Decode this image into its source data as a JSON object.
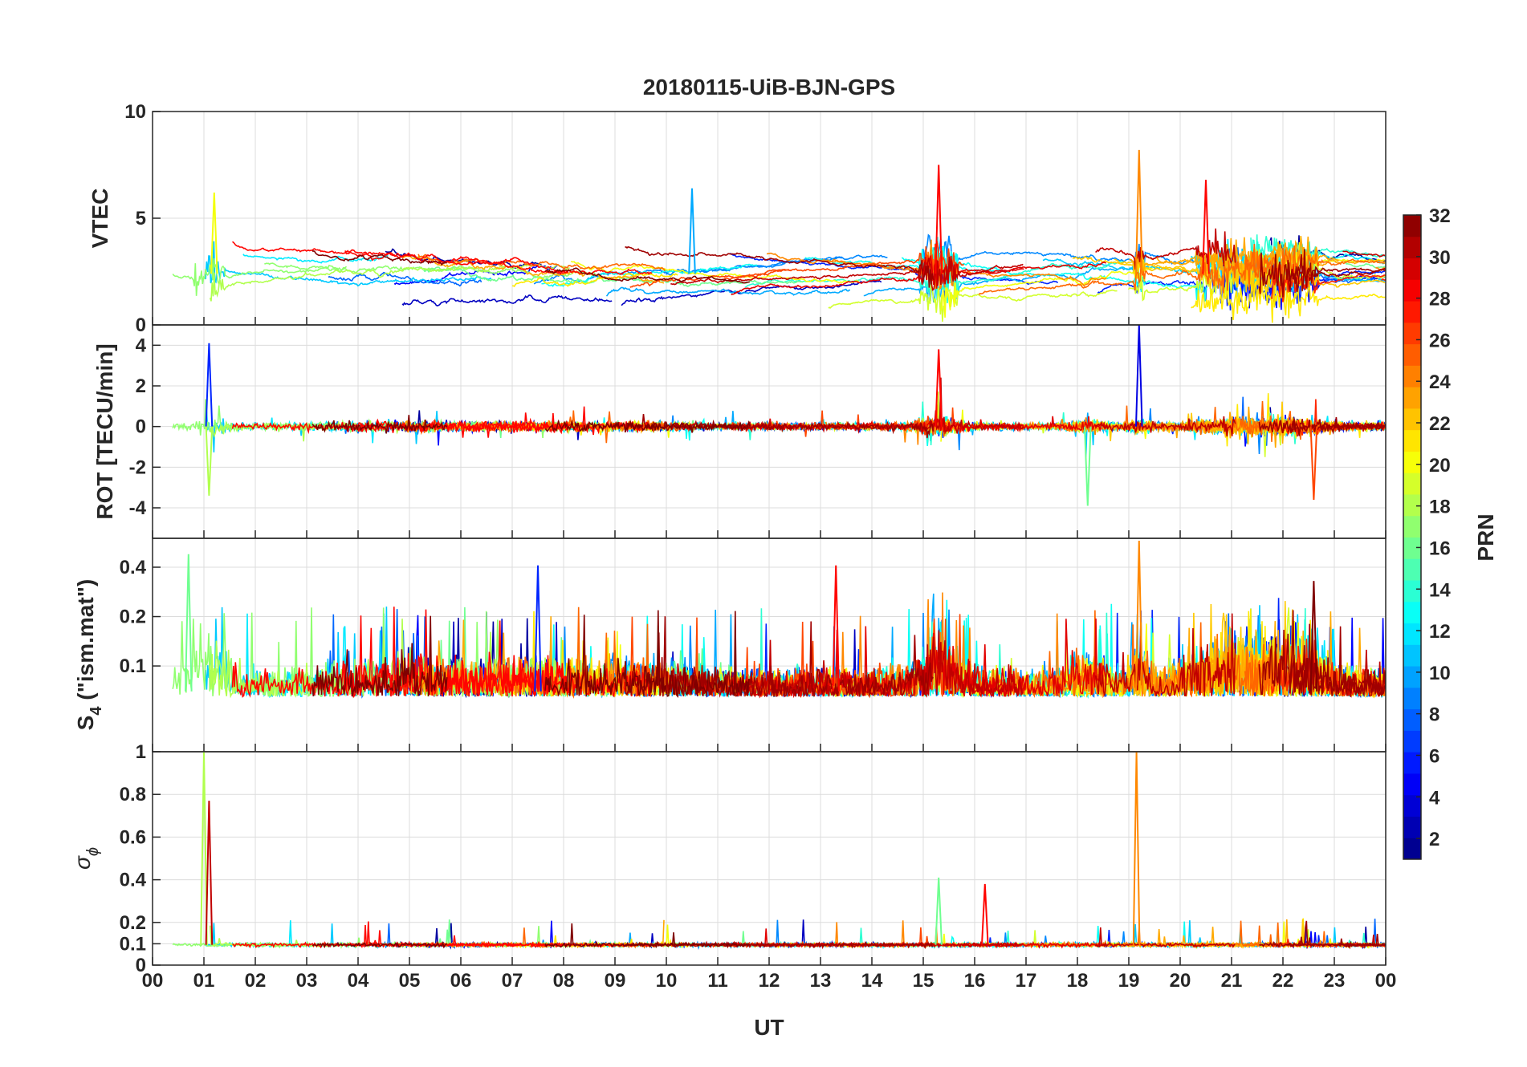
{
  "chart_data": {
    "type": "line",
    "title": "20180115-UiB-BJN-GPS",
    "xlabel": "UT",
    "x_tick_labels": [
      "00",
      "01",
      "02",
      "03",
      "04",
      "05",
      "06",
      "07",
      "08",
      "09",
      "10",
      "11",
      "12",
      "13",
      "14",
      "15",
      "16",
      "17",
      "18",
      "19",
      "20",
      "21",
      "22",
      "23",
      "00"
    ],
    "xlim": [
      0,
      24
    ],
    "grid": true,
    "panels": [
      {
        "id": "vtec",
        "ylabel": "VTEC",
        "ylim": [
          0,
          10
        ],
        "y_ticks": [
          0,
          5,
          10
        ],
        "y_tick_labels": [
          "0",
          "5",
          "10"
        ],
        "series_description_values": {
          "typical_range": [
            1,
            4
          ],
          "peaks": [
            {
              "x": 10.5,
              "y": 6.4,
              "prn": 10
            },
            {
              "x": 15.3,
              "y": 7.5,
              "prn": 28
            },
            {
              "x": 19.2,
              "y": 8.2,
              "prn": 24
            },
            {
              "x": 1.2,
              "y": 6.2,
              "prn": 20
            },
            {
              "x": 20.5,
              "y": 6.8,
              "prn": 28
            }
          ]
        }
      },
      {
        "id": "rot",
        "ylabel": "ROT [TECU/min]",
        "ylim": [
          -5.5,
          5
        ],
        "y_ticks": [
          -4,
          -2,
          0,
          2,
          4
        ],
        "y_tick_labels": [
          "-4",
          "-2",
          "0",
          "2",
          "4"
        ],
        "series_description_values": {
          "typical_range": [
            -0.5,
            0.5
          ],
          "peaks": [
            {
              "x": 1.1,
              "y": 4.1,
              "prn": 6
            },
            {
              "x": 1.1,
              "y": -3.4,
              "prn": 18
            },
            {
              "x": 15.3,
              "y": 3.8,
              "prn": 28
            },
            {
              "x": 19.2,
              "y": 5.0,
              "prn": 4
            },
            {
              "x": 18.2,
              "y": -3.9,
              "prn": 16
            },
            {
              "x": 22.6,
              "y": -3.6,
              "prn": 26
            }
          ]
        }
      },
      {
        "id": "s4",
        "ylabel_main": "S",
        "ylabel_sub": "4",
        "ylabel_rest": " (\"ism.mat\")",
        "ylim": [
          0.03,
          0.6
        ],
        "y_ticks": [
          0.1,
          0.2,
          0.4
        ],
        "y_tick_labels": [
          "0.1",
          "0.2",
          "0.4"
        ],
        "y_scale": "log",
        "series_description_values": {
          "typical_range": [
            0.05,
            0.15
          ],
          "peaks": [
            {
              "x": 0.7,
              "y": 0.48,
              "prn": 16
            },
            {
              "x": 7.5,
              "y": 0.41,
              "prn": 6
            },
            {
              "x": 13.3,
              "y": 0.41,
              "prn": 28
            },
            {
              "x": 19.2,
              "y": 0.58,
              "prn": 24
            },
            {
              "x": 22.6,
              "y": 0.33,
              "prn": 32
            }
          ]
        }
      },
      {
        "id": "sigma_phi",
        "ylabel_main": "σ",
        "ylabel_sub": "ϕ",
        "ylim": [
          0,
          1
        ],
        "y_ticks": [
          0,
          0.1,
          0.2,
          0.4,
          0.6,
          0.8,
          1
        ],
        "y_tick_labels": [
          "0",
          "0.1",
          "0.2",
          "0.4",
          "0.6",
          "0.8",
          "1"
        ],
        "y_tick_positions_frac": [
          0,
          0.1,
          0.2,
          0.4,
          0.6,
          0.8,
          1
        ],
        "series_description_values": {
          "typical_range": [
            0.08,
            0.12
          ],
          "peaks": [
            {
              "x": 1.0,
              "y": 1.0,
              "prn": 18
            },
            {
              "x": 1.1,
              "y": 0.77,
              "prn": 30
            },
            {
              "x": 19.15,
              "y": 1.0,
              "prn": 24
            },
            {
              "x": 16.2,
              "y": 0.38,
              "prn": 28
            },
            {
              "x": 15.3,
              "y": 0.41,
              "prn": 16
            }
          ]
        }
      }
    ],
    "colorbar": {
      "label": "PRN",
      "range": [
        1,
        32
      ],
      "ticks": [
        2,
        4,
        6,
        8,
        10,
        12,
        14,
        16,
        18,
        20,
        22,
        24,
        26,
        28,
        30,
        32
      ],
      "tick_labels": [
        "2",
        "4",
        "6",
        "8",
        "10",
        "12",
        "14",
        "16",
        "18",
        "20",
        "22",
        "24",
        "26",
        "28",
        "30",
        "32"
      ],
      "colormap": "jet"
    },
    "series": [
      {
        "prn": 2
      },
      {
        "prn": 3
      },
      {
        "prn": 5
      },
      {
        "prn": 6
      },
      {
        "prn": 8
      },
      {
        "prn": 9
      },
      {
        "prn": 10
      },
      {
        "prn": 11
      },
      {
        "prn": 12
      },
      {
        "prn": 13
      },
      {
        "prn": 14
      },
      {
        "prn": 16
      },
      {
        "prn": 17
      },
      {
        "prn": 18
      },
      {
        "prn": 19
      },
      {
        "prn": 20
      },
      {
        "prn": 21
      },
      {
        "prn": 22
      },
      {
        "prn": 23
      },
      {
        "prn": 24
      },
      {
        "prn": 25
      },
      {
        "prn": 26
      },
      {
        "prn": 27
      },
      {
        "prn": 28
      },
      {
        "prn": 29
      },
      {
        "prn": 30
      },
      {
        "prn": 31
      },
      {
        "prn": 32
      }
    ]
  }
}
